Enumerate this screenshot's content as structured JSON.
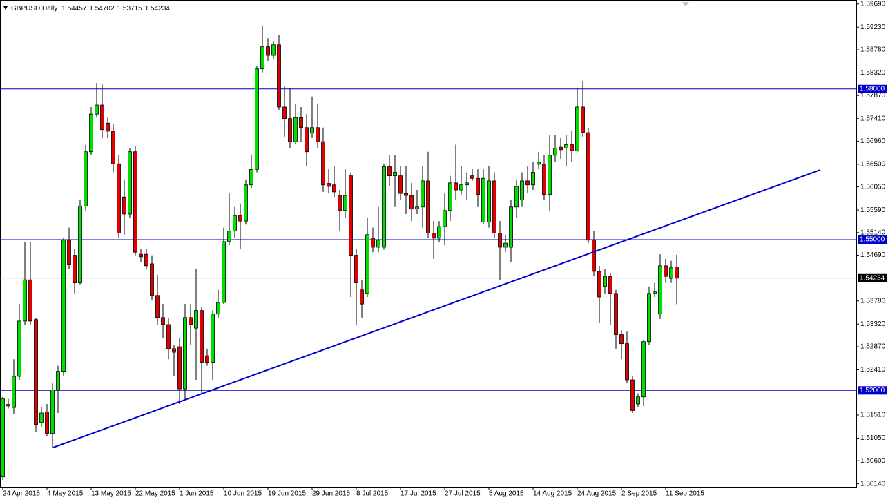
{
  "chart_data": {
    "type": "candlestick",
    "title": "GBPUSD,Daily",
    "categories": [
      "24 Apr 2015",
      null,
      null,
      null,
      null,
      null,
      null,
      null,
      "4 May 2015",
      null,
      null,
      null,
      null,
      null,
      null,
      null,
      "13 May 2015",
      null,
      null,
      null,
      null,
      null,
      null,
      null,
      "22 May 2015",
      null,
      null,
      null,
      null,
      null,
      null,
      null,
      "1 Jun 2015",
      null,
      null,
      null,
      null,
      null,
      null,
      null,
      "10 Jun 2015",
      null,
      null,
      null,
      null,
      null,
      null,
      null,
      "19 Jun 2015",
      null,
      null,
      null,
      null,
      null,
      null,
      null,
      "29 Jun 2015",
      null,
      null,
      null,
      null,
      null,
      null,
      null,
      "8 Jul 2015",
      null,
      null,
      null,
      null,
      null,
      null,
      null,
      "17 Jul 2015",
      null,
      null,
      null,
      null,
      null,
      null,
      null,
      "27 Jul 2015",
      null,
      null,
      null,
      null,
      null,
      null,
      null,
      "5 Aug 2015",
      null,
      null,
      null,
      null,
      null,
      null,
      null,
      "14 Aug 2015",
      null,
      null,
      null,
      null,
      null,
      null,
      null,
      "24 Aug 2015",
      null,
      null,
      null,
      null,
      null,
      null,
      null,
      "2 Sep 2015",
      null,
      null,
      null,
      null,
      null,
      null,
      null,
      "11 Sep 2015",
      null,
      null
    ],
    "open": [
      1.5029,
      1.5169,
      1.5166,
      1.5228,
      1.5338,
      1.542,
      1.5341,
      1.5136,
      1.5157,
      1.5114,
      1.5201,
      1.5238,
      1.5499,
      1.5469,
      1.5414,
      1.5567,
      1.5675,
      1.575,
      1.5768,
      1.5732,
      1.5716,
      1.5651,
      1.5585,
      1.5551,
      1.5675,
      1.5471,
      1.5471,
      1.5452,
      1.5389,
      1.5345,
      1.5331,
      1.5283,
      1.5287,
      1.5203,
      1.5345,
      1.5324,
      1.5359,
      1.5269,
      1.5256,
      1.5352,
      1.5375,
      1.5496,
      1.5517,
      1.5548,
      1.5537,
      1.5609,
      1.564,
      1.584,
      1.5884,
      1.5867,
      1.5888,
      1.5764,
      1.5741,
      1.5695,
      1.5743,
      1.5723,
      1.5712,
      1.5723,
      1.5695,
      1.5612,
      1.5609,
      1.5588,
      1.5558,
      1.5627,
      1.5469,
      1.54,
      1.5393,
      1.5503,
      1.5485,
      1.5485,
      1.5645,
      1.5627,
      1.5627,
      1.5592,
      1.5588,
      1.5561,
      1.5565,
      1.5617,
      1.5513,
      1.5503,
      1.5526,
      1.5558,
      1.5613,
      1.5599,
      1.5609,
      1.5627,
      1.5622,
      1.5535,
      1.5535,
      1.5617,
      1.5513,
      1.5485,
      1.5485,
      1.5565,
      1.5579,
      1.5617,
      1.5609,
      1.565,
      1.565,
      1.559,
      1.5668,
      1.5684,
      1.5682,
      1.5689,
      1.5677,
      1.5764,
      1.5713,
      1.5499,
      1.5437,
      1.5407,
      1.5427,
      1.5393,
      1.5311,
      1.5293,
      1.5221,
      1.5173,
      1.5187,
      1.5297,
      1.5393,
      1.5352,
      1.5448,
      1.5423,
      1.54457
    ],
    "high": [
      1.5187,
      1.5183,
      1.5262,
      1.5372,
      1.5496,
      1.5496,
      1.5345,
      1.5166,
      1.5173,
      1.5214,
      1.5249,
      1.5503,
      1.5524,
      1.5482,
      1.5579,
      1.5689,
      1.5764,
      1.5812,
      1.5809,
      1.5743,
      1.573,
      1.5668,
      1.562,
      1.5682,
      1.5686,
      1.5482,
      1.5482,
      1.5469,
      1.543,
      1.5372,
      1.5345,
      1.529,
      1.5304,
      1.5372,
      1.5372,
      1.5441,
      1.5366,
      1.5283,
      1.5359,
      1.54,
      1.5524,
      1.5592,
      1.5565,
      1.5572,
      1.562,
      1.5668,
      1.5846,
      1.5925,
      1.5901,
      1.5895,
      1.5908,
      1.5805,
      1.5801,
      1.5771,
      1.5764,
      1.575,
      1.5785,
      1.5771,
      1.5723,
      1.564,
      1.5647,
      1.5599,
      1.564,
      1.5634,
      1.5482,
      1.542,
      1.5544,
      1.5524,
      1.5565,
      1.565,
      1.5668,
      1.5668,
      1.5647,
      1.5647,
      1.5613,
      1.5599,
      1.5647,
      1.5675,
      1.5537,
      1.5537,
      1.5592,
      1.5627,
      1.5689,
      1.5647,
      1.5634,
      1.564,
      1.564,
      1.564,
      1.5647,
      1.5634,
      1.5537,
      1.551,
      1.5579,
      1.562,
      1.5634,
      1.5647,
      1.5654,
      1.5675,
      1.5668,
      1.5709,
      1.5709,
      1.5702,
      1.5709,
      1.5716,
      1.5801,
      1.5815,
      1.5723,
      1.5517,
      1.5448,
      1.5441,
      1.5434,
      1.54,
      1.532,
      1.5317,
      1.5228,
      1.5194,
      1.5301,
      1.5407,
      1.5414,
      1.5471,
      1.5462,
      1.5458,
      1.54702
    ],
    "low": [
      1.5022,
      1.5164,
      1.5153,
      1.5221,
      1.5331,
      1.5331,
      1.5118,
      1.5128,
      1.5109,
      1.5087,
      1.5155,
      1.5228,
      1.5441,
      1.5393,
      1.5411,
      1.5558,
      1.5668,
      1.5743,
      1.5702,
      1.5702,
      1.5634,
      1.5503,
      1.551,
      1.5544,
      1.5469,
      1.5455,
      1.5441,
      1.5379,
      1.5331,
      1.5304,
      1.5262,
      1.5228,
      1.5173,
      1.518,
      1.529,
      1.5221,
      1.5194,
      1.5249,
      1.5221,
      1.5345,
      1.5372,
      1.5489,
      1.5503,
      1.5482,
      1.553,
      1.5603,
      1.5634,
      1.5833,
      1.5856,
      1.586,
      1.5757,
      1.5705,
      1.5682,
      1.5691,
      1.5695,
      1.5647,
      1.5702,
      1.5682,
      1.5595,
      1.5592,
      1.5585,
      1.5517,
      1.5544,
      1.5386,
      1.5331,
      1.5345,
      1.5386,
      1.5475,
      1.5475,
      1.548,
      1.5606,
      1.5565,
      1.5579,
      1.5551,
      1.5537,
      1.5551,
      1.5524,
      1.5503,
      1.5462,
      1.5496,
      1.5489,
      1.5537,
      1.5579,
      1.559,
      1.5579,
      1.5617,
      1.5565,
      1.553,
      1.5524,
      1.5503,
      1.542,
      1.5475,
      1.5455,
      1.5544,
      1.5565,
      1.5592,
      1.5599,
      1.564,
      1.5579,
      1.5558,
      1.5654,
      1.5661,
      1.5647,
      1.5654,
      1.5675,
      1.5705,
      1.5493,
      1.5427,
      1.5334,
      1.5393,
      1.5331,
      1.5283,
      1.5262,
      1.5214,
      1.5155,
      1.5166,
      1.5169,
      1.529,
      1.5386,
      1.5342,
      1.5414,
      1.5414,
      1.53715
    ],
    "close": [
      1.5183,
      1.5172,
      1.5228,
      1.5338,
      1.542,
      1.5338,
      1.5132,
      1.5155,
      1.5114,
      1.5201,
      1.5238,
      1.5499,
      1.5451,
      1.5414,
      1.5567,
      1.5675,
      1.575,
      1.5768,
      1.5719,
      1.5716,
      1.5651,
      1.5513,
      1.5551,
      1.5675,
      1.5475,
      1.5466,
      1.5448,
      1.5389,
      1.5345,
      1.5331,
      1.5283,
      1.5276,
      1.5203,
      1.5345,
      1.5331,
      1.5359,
      1.5256,
      1.5256,
      1.5352,
      1.5375,
      1.5496,
      1.5517,
      1.5548,
      1.5537,
      1.5609,
      1.564,
      1.584,
      1.5884,
      1.5867,
      1.5888,
      1.5764,
      1.5741,
      1.5695,
      1.5743,
      1.5723,
      1.5675,
      1.5723,
      1.5695,
      1.5609,
      1.5606,
      1.5595,
      1.5558,
      1.5588,
      1.5469,
      1.5414,
      1.5372,
      1.551,
      1.5485,
      1.5499,
      1.5645,
      1.5627,
      1.5634,
      1.5592,
      1.5588,
      1.5561,
      1.5565,
      1.5617,
      1.5513,
      1.5503,
      1.5526,
      1.5558,
      1.5613,
      1.5599,
      1.5609,
      1.5613,
      1.5622,
      1.559,
      1.5622,
      1.5617,
      1.5513,
      1.5485,
      1.5493,
      1.5565,
      1.5606,
      1.5617,
      1.5609,
      1.5634,
      1.5654,
      1.559,
      1.5668,
      1.5682,
      1.5679,
      1.5689,
      1.5677,
      1.5764,
      1.5713,
      1.5499,
      1.5437,
      1.5386,
      1.5427,
      1.5393,
      1.5311,
      1.5293,
      1.5221,
      1.516,
      1.5187,
      1.5297,
      1.5393,
      1.5396,
      1.5448,
      1.5427,
      1.5444,
      1.54234
    ],
    "up_color": "#00e000",
    "down_color": "#e00000",
    "outline_color": "#000000",
    "ylim": [
      1.5008,
      1.5977
    ],
    "yticks": [
      {
        "value": 1.5969,
        "label": "1.59690"
      },
      {
        "value": 1.5923,
        "label": "1.59230"
      },
      {
        "value": 1.5878,
        "label": "1.58780"
      },
      {
        "value": 1.5832,
        "label": "1.58320"
      },
      {
        "value": 1.5787,
        "label": "1.57870"
      },
      {
        "value": 1.5741,
        "label": "1.57410"
      },
      {
        "value": 1.5696,
        "label": "1.56960"
      },
      {
        "value": 1.565,
        "label": "1.56500"
      },
      {
        "value": 1.5605,
        "label": "1.56050"
      },
      {
        "value": 1.5559,
        "label": "1.55590"
      },
      {
        "value": 1.5514,
        "label": "1.55140"
      },
      {
        "value": 1.5469,
        "label": "1.54690"
      },
      {
        "value": 1.5378,
        "label": "1.53780"
      },
      {
        "value": 1.5332,
        "label": "1.53320"
      },
      {
        "value": 1.5287,
        "label": "1.52870"
      },
      {
        "value": 1.5241,
        "label": "1.52410"
      },
      {
        "value": 1.5151,
        "label": "1.51510"
      },
      {
        "value": 1.5105,
        "label": "1.51050"
      },
      {
        "value": 1.506,
        "label": "1.50600"
      },
      {
        "value": 1.5014,
        "label": "1.50140"
      }
    ],
    "grid": false,
    "levels": [
      {
        "value": 1.58,
        "label": "1.58000"
      },
      {
        "value": 1.55,
        "label": "1.55000"
      },
      {
        "value": 1.52,
        "label": "1.52000"
      }
    ],
    "level_color": "#0000cc",
    "price_line_color": "#c0c0c0"
  }
}
